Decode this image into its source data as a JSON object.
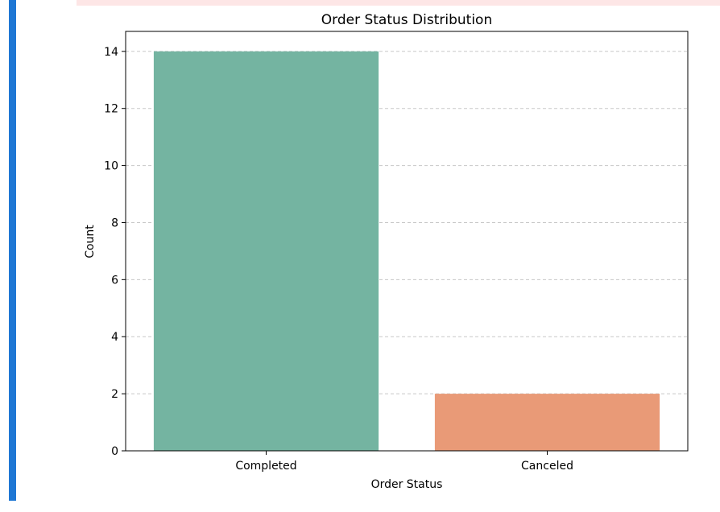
{
  "chart_data": {
    "type": "bar",
    "title": "Order Status Distribution",
    "xlabel": "Order Status",
    "ylabel": "Count",
    "categories": [
      "Completed",
      "Canceled"
    ],
    "values": [
      14,
      2
    ],
    "colors": [
      "#74b4a1",
      "#e99a77"
    ],
    "ylim": [
      0,
      14.7
    ],
    "yticks": [
      0,
      2,
      4,
      6,
      8,
      10,
      12,
      14
    ],
    "grid": "y-dashed",
    "legend": "none"
  }
}
